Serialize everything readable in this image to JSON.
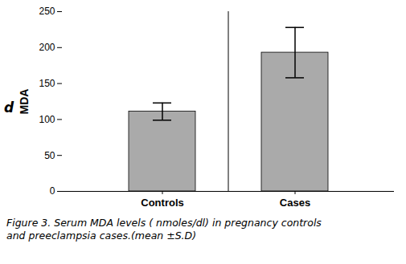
{
  "chart_data": {
    "type": "bar",
    "categories": [
      "Controls",
      "Cases"
    ],
    "values": [
      111,
      193
    ],
    "errors": [
      12,
      35
    ],
    "color": "#aaaaaa",
    "ylabel": "MDA",
    "ylim": [
      0,
      250
    ],
    "yticks": [
      0,
      50,
      100,
      150,
      200,
      250
    ],
    "grid": false,
    "annotations": [
      "d"
    ],
    "caption": [
      "Figure 3. Serum MDA levels ( nmoles/dl) in pregnancy controls",
      "and preeclampsia cases.(mean ±S.D)"
    ]
  }
}
